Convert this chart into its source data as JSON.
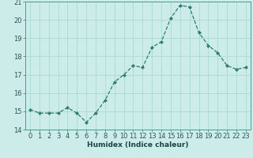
{
  "x": [
    0,
    1,
    2,
    3,
    4,
    5,
    6,
    7,
    8,
    9,
    10,
    11,
    12,
    13,
    14,
    15,
    16,
    17,
    18,
    19,
    20,
    21,
    22,
    23
  ],
  "y": [
    15.1,
    14.9,
    14.9,
    14.9,
    15.2,
    14.9,
    14.4,
    14.9,
    15.6,
    16.6,
    17.0,
    17.5,
    17.4,
    18.5,
    18.8,
    20.1,
    20.8,
    20.7,
    19.3,
    18.6,
    18.2,
    17.5,
    17.3,
    17.4
  ],
  "line_color": "#2e7d6e",
  "marker": "D",
  "marker_size": 2.0,
  "bg_color": "#ccecea",
  "grid_color": "#aad8d5",
  "xlabel": "Humidex (Indice chaleur)",
  "xlim": [
    -0.5,
    23.5
  ],
  "ylim": [
    14,
    21
  ],
  "yticks": [
    14,
    15,
    16,
    17,
    18,
    19,
    20,
    21
  ],
  "xticks": [
    0,
    1,
    2,
    3,
    4,
    5,
    6,
    7,
    8,
    9,
    10,
    11,
    12,
    13,
    14,
    15,
    16,
    17,
    18,
    19,
    20,
    21,
    22,
    23
  ],
  "xlabel_fontsize": 6.5,
  "tick_fontsize": 6.0,
  "line_width": 0.9
}
